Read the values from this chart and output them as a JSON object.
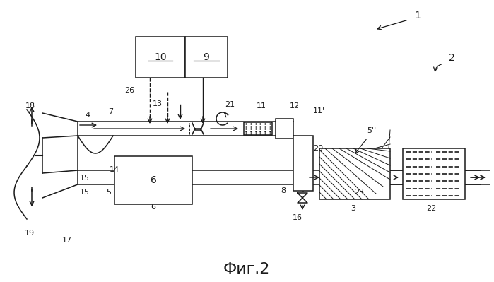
{
  "bg_color": "#ffffff",
  "line_color": "#1a1a1a",
  "title": "Фиг.2",
  "title_fontsize": 16,
  "fig_width": 6.99,
  "fig_height": 3.99,
  "dpi": 100
}
